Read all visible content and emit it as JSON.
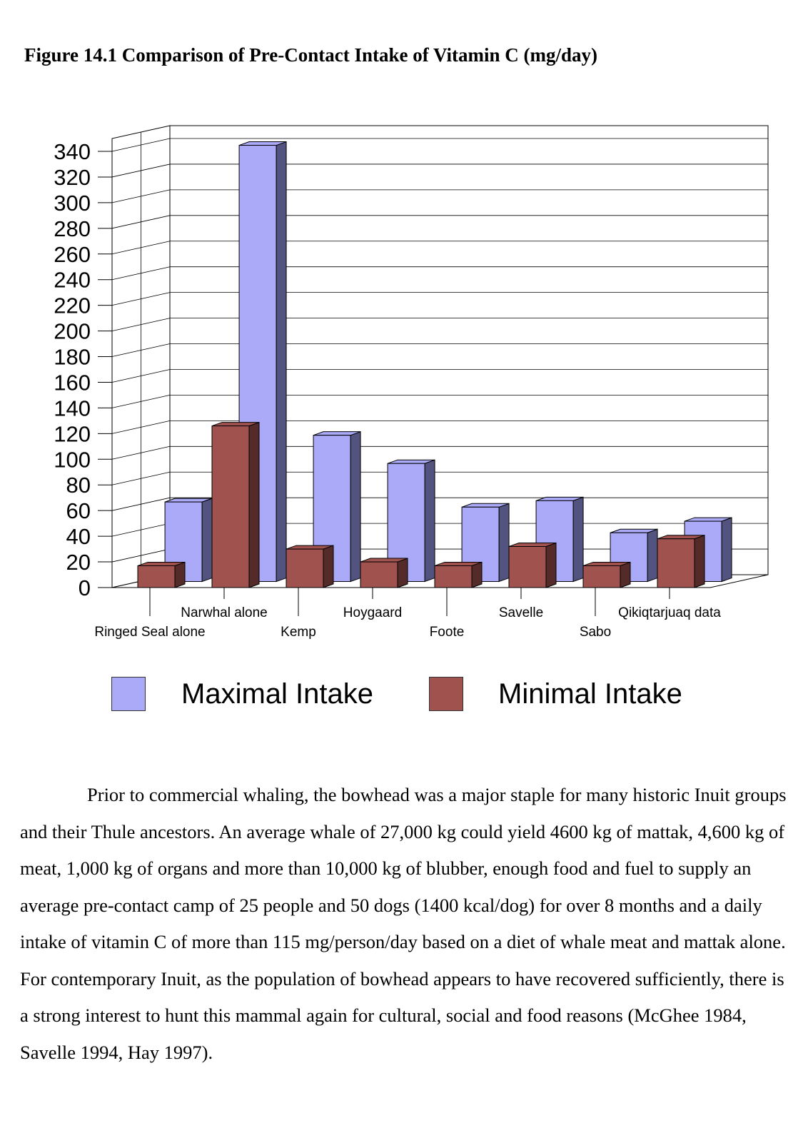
{
  "figure": {
    "title": "Figure 14.1 Comparison of Pre-Contact Intake of Vitamin C (mg/day)"
  },
  "chart_data": {
    "type": "bar",
    "style": "3d-clustered-column",
    "title": "",
    "xlabel": "",
    "ylabel": "",
    "ylim": [
      0,
      340
    ],
    "yticks": [
      0,
      20,
      40,
      60,
      80,
      100,
      120,
      140,
      160,
      180,
      200,
      220,
      240,
      260,
      280,
      300,
      320,
      340
    ],
    "grid": true,
    "legend_position": "bottom",
    "categories": [
      "Ringed Seal alone",
      "Narwhal alone",
      "Kemp",
      "Hoygaard",
      "Foote",
      "Savelle",
      "Sabo",
      "Qikiqtarjuaq data"
    ],
    "series": [
      {
        "name": "Maximal Intake",
        "color": "#aaaaf8",
        "side_color": "#53537f",
        "values": [
          62,
          340,
          114,
          92,
          58,
          63,
          38,
          47
        ]
      },
      {
        "name": "Minimal Intake",
        "color": "#a0524f",
        "side_color": "#552b2a",
        "values": [
          17,
          126,
          30,
          20,
          17,
          32,
          17,
          38
        ]
      }
    ]
  },
  "paragraph": {
    "text": "Prior to commercial whaling, the bowhead was a major staple for many historic Inuit groups and their Thule ancestors. An average whale of 27,000 kg could yield 4600 kg of mattak, 4,600 kg of meat, 1,000 kg of organs and more than 10,000 kg of blubber, enough food and fuel to supply an average pre-contact camp of 25 people and 50 dogs (1400 kcal/dog) for over 8 months and a daily intake of vitamin C of more than 115 mg/person/day based on a diet of whale meat and mattak alone. For contemporary Inuit, as the population of bowhead appears to have recovered sufficiently, there is a strong interest to hunt this mammal again for cultural, social and food reasons (McGhee 1984, Savelle 1994, Hay 1997)."
  }
}
